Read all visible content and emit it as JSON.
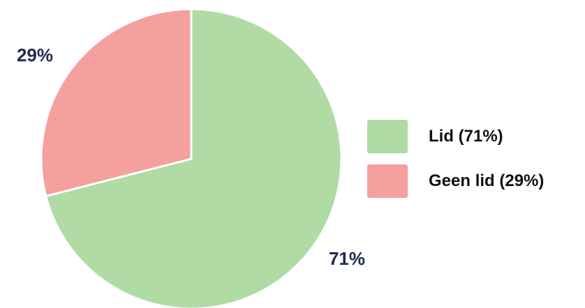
{
  "chart_data": {
    "type": "pie",
    "title": "",
    "start_angle": "12 o'clock, clockwise",
    "slices": [
      {
        "label": "Lid",
        "value": 71,
        "display": "71%",
        "legend_text": "Lid (71%)",
        "color": "#b0dba5"
      },
      {
        "label": "Geen lid",
        "value": 29,
        "display": "29%",
        "legend_text": "Geen lid (29%)",
        "color": "#f4a09f"
      }
    ],
    "legend_position": "right",
    "label_color": "#1f2b4d"
  }
}
